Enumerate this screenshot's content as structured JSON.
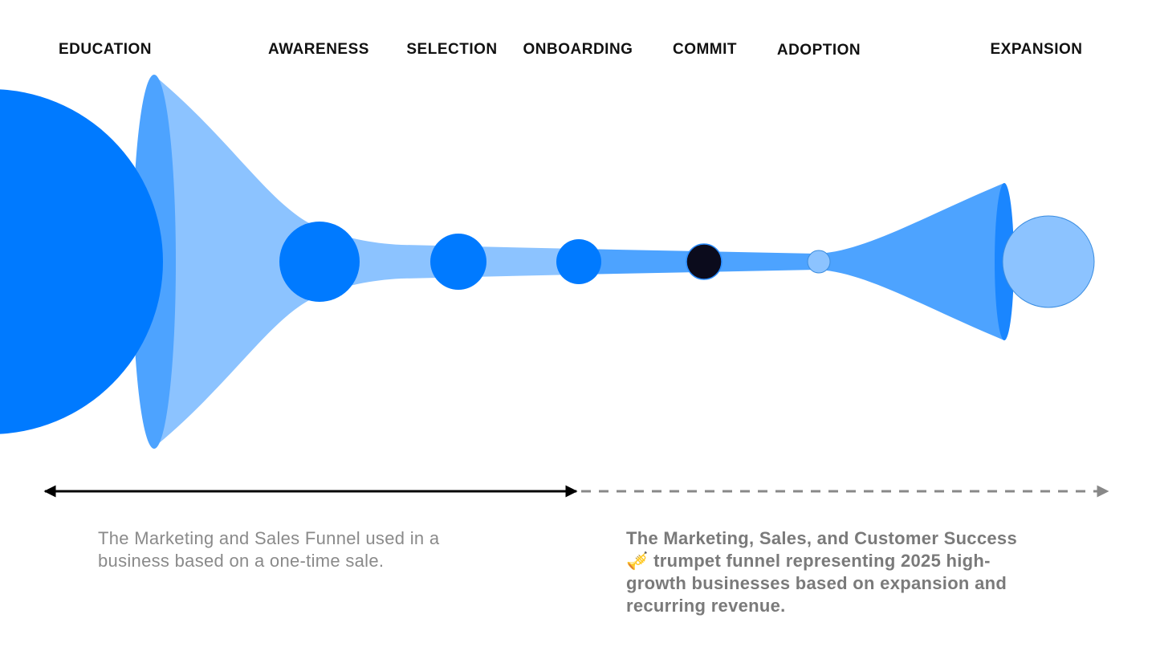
{
  "stages": [
    "EDUCATION",
    "AWARENESS",
    "SELECTION",
    "ONBOARDING",
    "COMMIT",
    "ADOPTION",
    "EXPANSION"
  ],
  "captions": {
    "one_time": [
      "The Marketing and Sales Funnel used in a",
      "business based on a one-time sale."
    ],
    "trumpet": [
      "The Marketing, Sales, and Customer Success",
      "🎺 trumpet funnel representing 2025 high-",
      "growth businesses based on expansion and",
      "recurring revenue."
    ]
  }
}
